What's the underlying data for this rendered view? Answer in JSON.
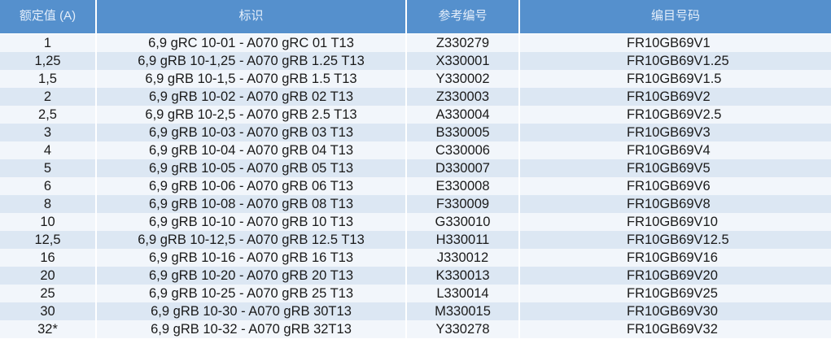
{
  "colors": {
    "header_bg": "#5590cd",
    "row_light": "#f2f6fb",
    "row_dark": "#dce7f3"
  },
  "headers": [
    "额定值 (A)",
    "标识",
    "参考编号",
    "编目号码"
  ],
  "rows": [
    [
      "1",
      "6,9 gRC 10-01 - A070 gRC 01 T13",
      "Z330279",
      "FR10GB69V1"
    ],
    [
      "1,25",
      "6,9 gRB 10-1,25 - A070 gRB 1.25 T13",
      "X330001",
      "FR10GB69V1.25"
    ],
    [
      "1,5",
      "6,9 gRB 10-1,5 - A070 gRB 1.5 T13",
      "Y330002",
      "FR10GB69V1.5"
    ],
    [
      "2",
      "6,9 gRB 10-02 - A070 gRB 02 T13",
      "Z330003",
      "FR10GB69V2"
    ],
    [
      "2,5",
      "6,9 gRB 10-2,5 - A070 gRB 2.5 T13",
      "A330004",
      "FR10GB69V2.5"
    ],
    [
      "3",
      "6,9 gRB 10-03 - A070 gRB 03 T13",
      "B330005",
      "FR10GB69V3"
    ],
    [
      "4",
      "6,9 gRB 10-04 - A070 gRB 04 T13",
      "C330006",
      "FR10GB69V4"
    ],
    [
      "5",
      "6,9 gRB 10-05 - A070 gRB 05 T13",
      "D330007",
      "FR10GB69V5"
    ],
    [
      "6",
      "6,9 gRB 10-06 - A070 gRB 06 T13",
      "E330008",
      "FR10GB69V6"
    ],
    [
      "8",
      "6,9 gRB 10-08 - A070 gRB 08 T13",
      "F330009",
      "FR10GB69V8"
    ],
    [
      "10",
      "6,9 gRB 10-10 - A070 gRB 10 T13",
      "G330010",
      "FR10GB69V10"
    ],
    [
      "12,5",
      "6,9 gRB 10-12,5 - A070 gRB 12.5 T13",
      "H330011",
      "FR10GB69V12.5"
    ],
    [
      "16",
      "6,9 gRB 10-16 - A070 gRB 16 T13",
      "J330012",
      "FR10GB69V16"
    ],
    [
      "20",
      "6,9 gRB 10-20 - A070 gRB 20 T13",
      "K330013",
      "FR10GB69V20"
    ],
    [
      "25",
      "6,9 gRB 10-25 - A070 gRB 25 T13",
      "L330014",
      "FR10GB69V25"
    ],
    [
      "30",
      "6,9 gRB 10-30 - A070 gRB 30T13",
      "M330015",
      "FR10GB69V30"
    ],
    [
      "32*",
      "6,9 gRB 10-32 - A070 gRB 32T13",
      "Y330278",
      "FR10GB69V32"
    ]
  ]
}
